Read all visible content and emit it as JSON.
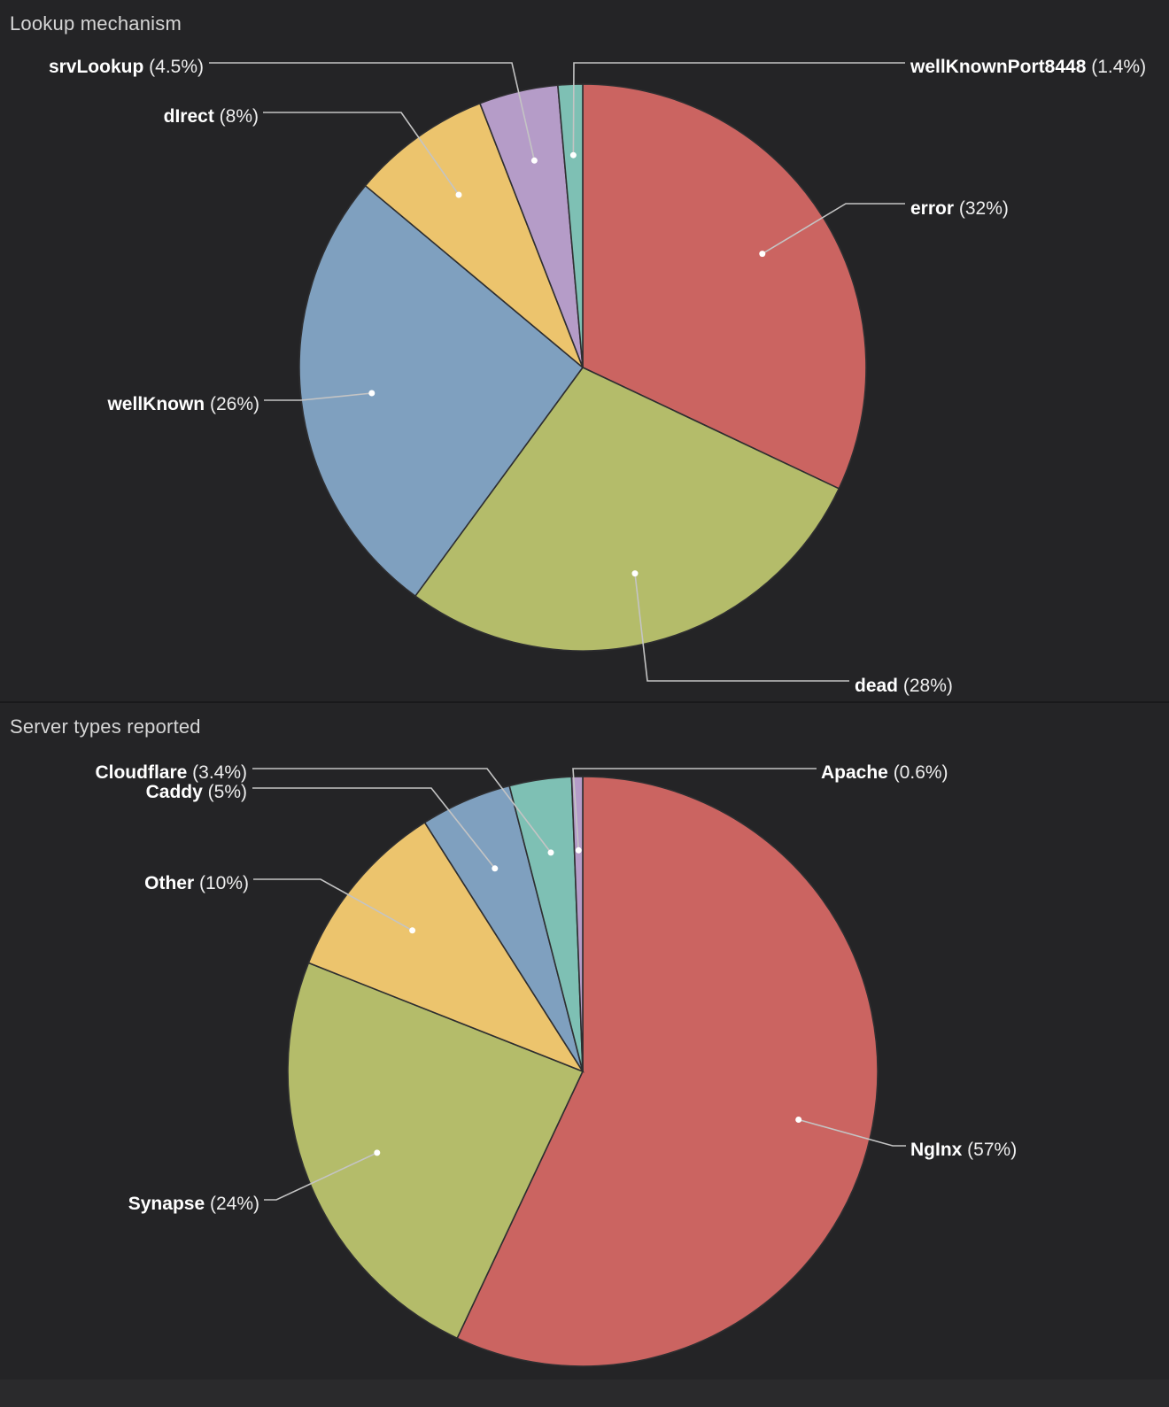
{
  "theme": {
    "background": "#242426",
    "divider_color": "#19191b",
    "leader_line_color": "#c4c4c4",
    "dot_color": "#ffffff",
    "slice_stroke_color": "#2e2e30",
    "title_color": "#d6d6d6",
    "label_color": "#ffffff"
  },
  "chart_data": [
    {
      "type": "pie",
      "title": "Lookup mechanism",
      "labels": [
        "error",
        "dead",
        "wellKnown",
        "dIrect",
        "srvLookup",
        "wellKnownPort8448"
      ],
      "values": [
        32,
        28,
        26,
        8,
        4.5,
        1.4
      ],
      "display_pcts": [
        "32%",
        "28%",
        "26%",
        "8%",
        "4.5%",
        "1.4%"
      ],
      "colors": [
        "#cb6461",
        "#b4bc6a",
        "#7fa0bf",
        "#ecc46d",
        "#b59cc8",
        "#7ec0b4"
      ],
      "label_format": "name (pct)",
      "legend_position": "callout-labels",
      "start_angle_deg": 0,
      "direction": "clockwise"
    },
    {
      "type": "pie",
      "title": "Server types reported",
      "labels": [
        "NgInx",
        "Synapse",
        "Other",
        "Caddy",
        "Cloudflare",
        "Apache"
      ],
      "values": [
        57,
        24,
        10,
        5,
        3.4,
        0.6
      ],
      "display_pcts": [
        "57%",
        "24%",
        "10%",
        "5%",
        "3.4%",
        "0.6%"
      ],
      "colors": [
        "#cb6461",
        "#b4bc6a",
        "#ecc46d",
        "#7fa0bf",
        "#7ec0b4",
        "#b59cc8"
      ],
      "label_format": "name (pct)",
      "legend_position": "callout-labels",
      "start_angle_deg": 0,
      "direction": "clockwise"
    }
  ]
}
